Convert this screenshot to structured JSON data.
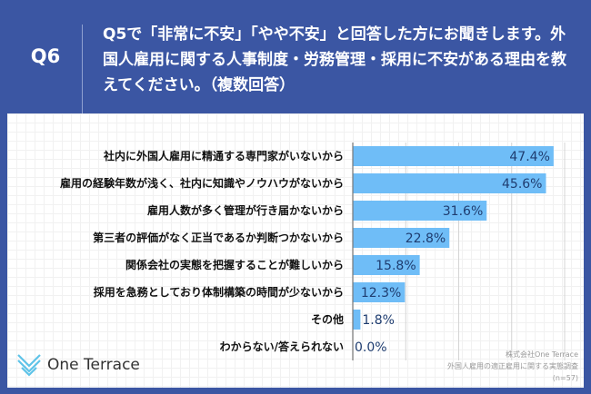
{
  "question_id": "Q6",
  "question_text": "Q5で「非常に不安」「やや不安」と回答した方にお聞きします。外国人雇用に関する人事制度・労務管理・採用に不安がある理由を教えてください。（複数回答）",
  "brand": "One Terrace",
  "source": {
    "company": "株式会社One Terrace",
    "survey": "外国人雇用の適正雇用に関する実態調査",
    "n": "(n=57)"
  },
  "colors": {
    "background": "#3b56a3",
    "bar": "#6fbdf7",
    "value_text": "#1f3d70"
  },
  "chart_data": {
    "type": "bar",
    "orientation": "horizontal",
    "xlim": [
      0,
      50
    ],
    "grid": true,
    "categories": [
      "社内に外国人雇用に精通する専門家がいないから",
      "雇用の経験年数が浅く、社内に知識やノウハウがないから",
      "雇用人数が多く管理が行き届かないから",
      "第三者の評価がなく正当であるか判断つかないから",
      "関係会社の実態を把握することが難しいから",
      "採用を急務としており体制構築の時間が少ないから",
      "その他",
      "わからない/答えられない"
    ],
    "values": [
      47.4,
      45.6,
      31.6,
      22.8,
      15.8,
      12.3,
      1.8,
      0.0
    ],
    "labels": [
      "47.4%",
      "45.6%",
      "31.6%",
      "22.8%",
      "15.8%",
      "12.3%",
      "1.8%",
      "0.0%"
    ]
  }
}
